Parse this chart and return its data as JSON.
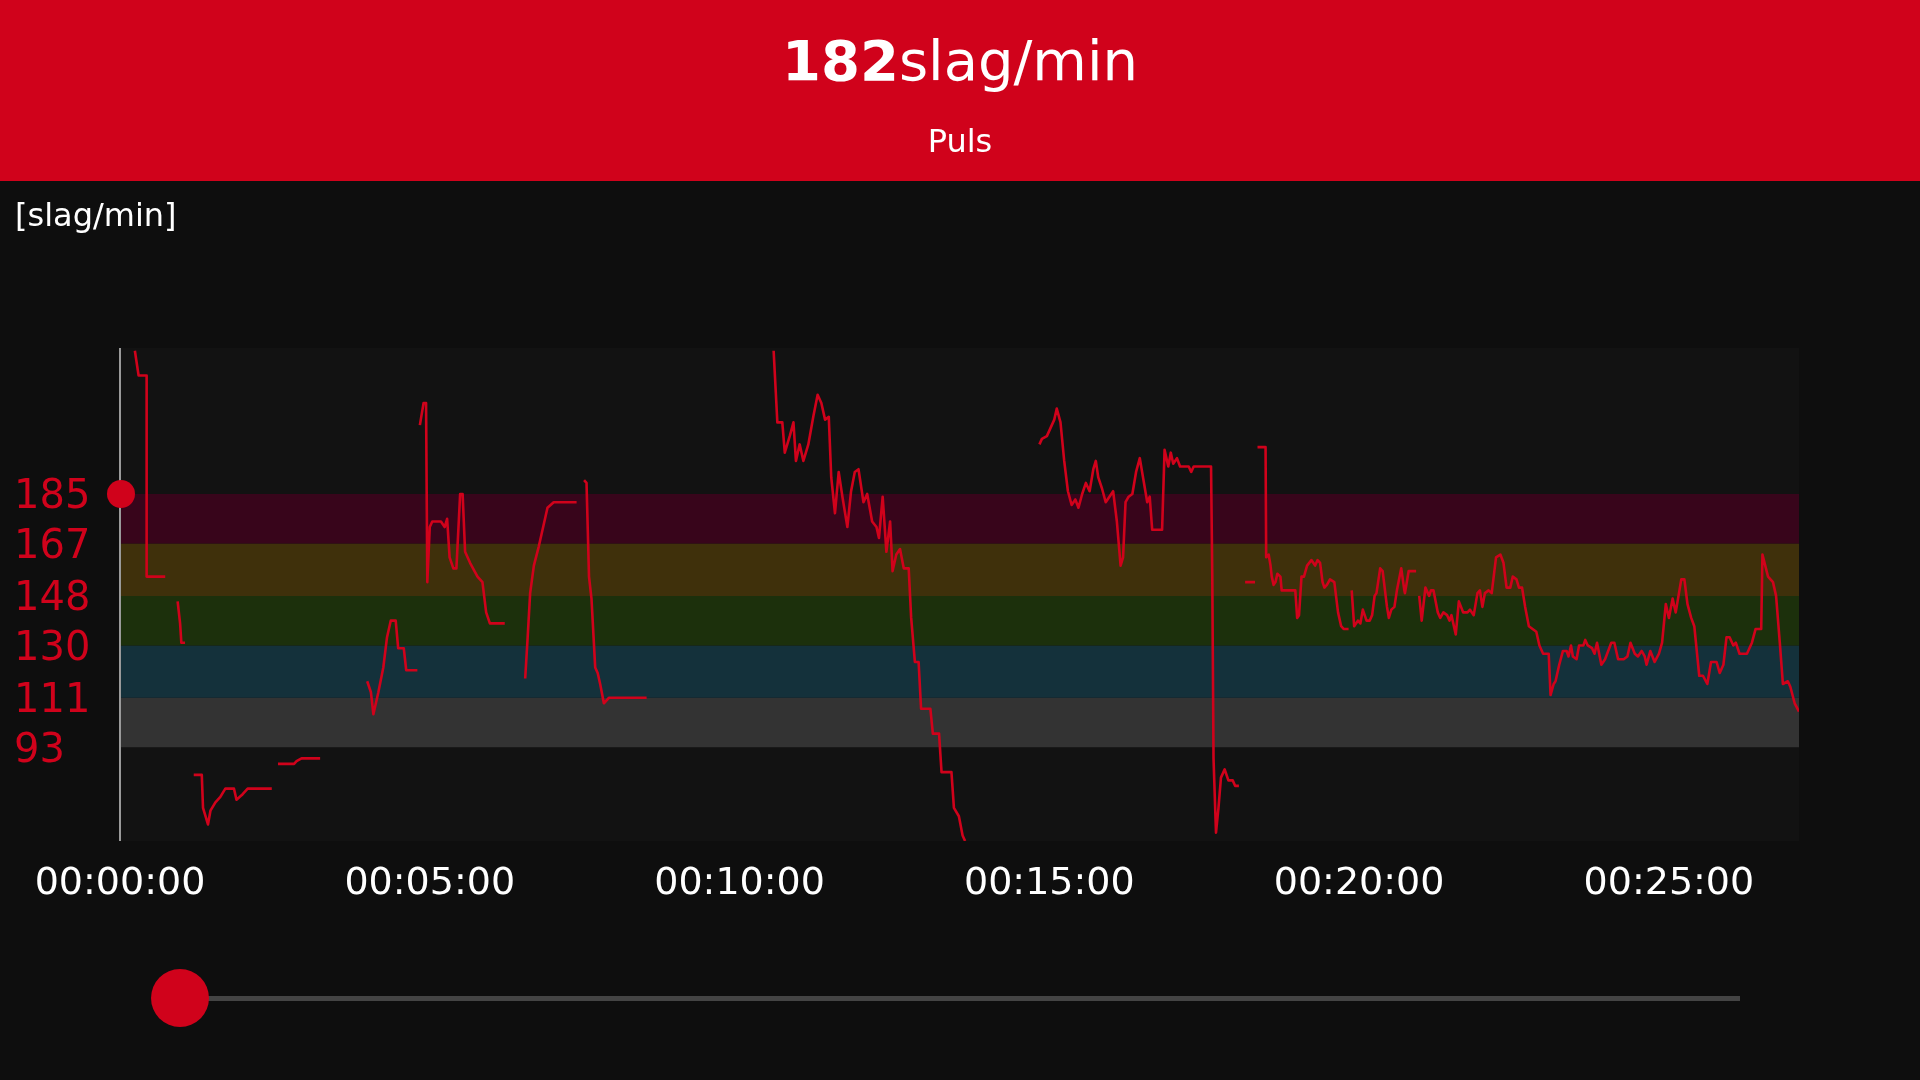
{
  "chart_data": {
    "type": "line",
    "title": "182slag/min",
    "subtitle": "Puls",
    "ylabel": "[slag/min]",
    "ylim": [
      59,
      238
    ],
    "yticks": [
      93,
      111,
      130,
      148,
      167,
      185
    ],
    "xlim": [
      0,
      27.1
    ],
    "xticks": [
      {
        "value": 0,
        "label": "00:00:00"
      },
      {
        "value": 5,
        "label": "00:05:00"
      },
      {
        "value": 10,
        "label": "00:10:00"
      },
      {
        "value": 15,
        "label": "00:15:00"
      },
      {
        "value": 20,
        "label": "00:20:00"
      },
      {
        "value": 25,
        "label": "00:25:00"
      }
    ],
    "bands": [
      {
        "axis": "y",
        "from": 93,
        "to": 111,
        "color": "#333333"
      },
      {
        "axis": "y",
        "from": 111,
        "to": 130,
        "color": "#14313b"
      },
      {
        "axis": "y",
        "from": 130,
        "to": 148,
        "color": "#1c300c"
      },
      {
        "axis": "y",
        "from": 148,
        "to": 167,
        "color": "#3f300b"
      },
      {
        "axis": "y",
        "from": 167,
        "to": 185,
        "color": "#38051b"
      }
    ],
    "x": [
      0.24,
      0.3,
      0.43,
      0.43,
      0.73,
      0.83,
      0.93,
      0.97,
      0.99,
      1.05,
      1.12,
      1.19,
      1.32,
      1.34,
      1.42,
      1.46,
      1.54,
      1.62,
      1.7,
      1.84,
      1.88,
      1.98,
      2.06,
      2.11,
      2.45,
      2.5,
      2.55,
      2.81,
      2.85,
      2.93,
      3.23,
      3.6,
      3.99,
      4.05,
      4.09,
      4.17,
      4.25,
      4.31,
      4.37,
      4.45,
      4.49,
      4.58,
      4.62,
      4.8,
      4.82,
      4.84,
      4.9,
      4.94,
      4.96,
      5.0,
      5.04,
      5.18,
      5.24,
      5.28,
      5.32,
      5.38,
      5.43,
      5.49,
      5.53,
      5.57,
      5.65,
      5.77,
      5.85,
      5.91,
      5.97,
      6.21,
      6.38,
      6.54,
      6.58,
      6.62,
      6.68,
      6.76,
      6.84,
      6.9,
      7.0,
      7.37,
      7.43,
      7.49,
      7.53,
      7.57,
      7.61,
      7.67,
      7.71,
      7.75,
      7.81,
      7.89,
      8.5,
      9.5,
      10.55,
      10.61,
      10.69,
      10.73,
      10.81,
      10.87,
      10.91,
      10.97,
      11.03,
      11.11,
      11.19,
      11.26,
      11.32,
      11.38,
      11.44,
      11.48,
      11.54,
      11.6,
      11.66,
      11.74,
      11.8,
      11.86,
      11.92,
      12.0,
      12.06,
      12.14,
      12.21,
      12.25,
      12.31,
      12.37,
      12.43,
      12.47,
      12.53,
      12.59,
      12.65,
      12.73,
      12.77,
      12.83,
      12.89,
      12.93,
      13.08,
      13.12,
      13.22,
      13.26,
      13.42,
      13.46,
      13.54,
      13.6,
      13.64,
      14.2,
      14.84,
      14.88,
      14.96,
      15.02,
      15.08,
      15.12,
      15.18,
      15.24,
      15.3,
      15.36,
      15.42,
      15.47,
      15.53,
      15.59,
      15.65,
      15.71,
      15.75,
      15.79,
      15.85,
      15.91,
      15.97,
      16.03,
      16.09,
      16.15,
      16.19,
      16.23,
      16.28,
      16.34,
      16.4,
      16.46,
      16.52,
      16.58,
      16.62,
      16.66,
      16.82,
      16.86,
      16.92,
      16.96,
      17.0,
      17.06,
      17.11,
      17.25,
      17.29,
      17.33,
      17.61,
      17.63,
      17.65,
      17.69,
      17.73,
      17.77,
      17.83,
      17.89,
      17.96,
      18.0,
      18.06,
      18.11,
      18.16,
      18.32,
      18.34,
      18.36,
      18.49,
      18.5,
      18.54,
      18.57,
      18.59,
      18.62,
      18.65,
      18.68,
      18.73,
      18.75,
      18.97,
      19.0,
      19.03,
      19.07,
      19.11,
      19.16,
      19.23,
      19.29,
      19.33,
      19.37,
      19.41,
      19.44,
      19.48,
      19.53,
      19.6,
      19.66,
      19.71,
      19.75,
      19.83,
      19.85,
      19.88,
      19.92,
      19.98,
      20.02,
      20.06,
      20.12,
      20.17,
      20.21,
      20.25,
      20.28,
      20.34,
      20.38,
      20.45,
      20.48,
      20.52,
      20.57,
      20.61,
      20.68,
      20.73,
      20.74,
      20.8,
      20.92,
      20.95,
      20.97,
      21.01,
      21.07,
      21.13,
      21.16,
      21.2,
      21.27,
      21.31,
      21.36,
      21.42,
      21.46,
      21.49,
      21.56,
      21.61,
      21.68,
      21.75,
      21.79,
      21.85,
      21.91,
      21.95,
      21.99,
      22.03,
      22.09,
      22.14,
      22.21,
      22.28,
      22.33,
      22.38,
      22.44,
      22.48,
      22.54,
      22.58,
      22.63,
      22.68,
      22.74,
      22.8,
      22.86,
      22.91,
      22.97,
      23.06,
      23.09,
      23.14,
      23.17,
      23.23,
      23.29,
      23.35,
      23.38,
      23.42,
      23.45,
      23.51,
      23.55,
      23.62,
      23.65,
      23.69,
      23.76,
      23.8,
      23.84,
      23.91,
      23.97,
      24.07,
      24.12,
      24.18,
      24.27,
      24.33,
      24.38,
      24.45,
      24.5,
      24.56,
      24.61,
      24.64,
      24.7,
      24.77,
      24.84,
      24.89,
      24.95,
      25.0,
      25.06,
      25.11,
      25.2,
      25.25,
      25.3,
      25.36,
      25.41,
      25.49,
      25.55,
      25.62,
      25.68,
      25.77,
      25.82,
      25.88,
      25.93,
      25.98,
      26.04,
      26.08,
      26.14,
      26.26,
      26.34,
      26.4,
      26.49,
      26.51,
      26.6,
      26.68,
      26.73,
      26.79,
      26.84,
      26.92,
      26.96,
      27.03,
      27.1
    ],
    "series": [
      {
        "color": "#d0021b",
        "values": [
          237,
          228,
          228,
          155,
          155,
          null,
          146,
          138,
          131,
          131,
          null,
          83,
          83,
          71,
          65,
          70,
          73,
          75,
          78,
          78,
          74,
          76,
          78,
          78,
          78,
          null,
          87,
          87,
          88,
          89,
          89,
          null,
          117,
          113,
          105,
          113,
          122,
          133,
          139,
          139,
          129,
          129,
          121,
          121,
          null,
          210,
          218,
          218,
          153,
          173,
          175,
          175,
          173,
          176,
          162,
          158,
          158,
          185,
          185,
          164,
          160,
          155,
          153,
          142,
          138,
          138,
          null,
          118,
          133,
          149,
          159,
          166,
          174,
          180,
          182,
          182,
          null,
          190,
          189,
          155,
          147,
          122,
          120,
          116,
          109,
          111,
          111,
          null,
          237,
          211,
          211,
          200,
          206,
          211,
          197,
          203,
          197,
          203,
          213,
          221,
          218,
          212,
          213,
          191,
          178,
          193,
          184,
          173,
          186,
          193,
          194,
          182,
          185,
          175,
          173,
          169,
          184,
          164,
          175,
          157,
          163,
          165,
          158,
          158,
          140,
          124,
          124,
          107,
          107,
          98,
          98,
          84,
          84,
          71,
          68,
          61,
          59,
          null,
          203,
          205,
          206,
          209,
          212,
          216,
          211,
          197,
          186,
          181,
          183,
          180,
          185,
          189,
          186,
          194,
          197,
          191,
          187,
          182,
          184,
          186,
          175,
          159,
          162,
          182,
          184,
          185,
          193,
          198,
          190,
          182,
          184,
          172,
          172,
          201,
          195,
          200,
          196,
          198,
          195,
          195,
          193,
          195,
          195,
          155,
          89,
          62,
          71,
          82,
          85,
          81,
          81,
          79,
          79,
          null,
          153,
          153,
          null,
          202,
          202,
          162,
          163,
          159,
          155,
          152,
          153,
          156,
          155,
          150,
          150,
          140,
          141,
          155,
          155,
          159,
          161,
          159,
          161,
          160,
          153,
          151,
          152,
          154,
          153,
          142,
          137,
          136,
          136,
          null,
          150,
          137,
          139,
          138,
          143,
          139,
          139,
          141,
          148,
          149,
          158,
          157,
          144,
          140,
          143,
          144,
          150,
          158,
          150,
          149,
          157,
          157,
          null,
          148,
          139,
          151,
          148,
          150,
          150,
          142,
          140,
          142,
          141,
          139,
          141,
          134,
          146,
          142,
          142,
          143,
          141,
          149,
          150,
          144,
          149,
          150,
          149,
          162,
          163,
          160,
          151,
          151,
          155,
          154,
          151,
          151,
          144,
          137,
          136,
          135,
          130,
          127,
          127,
          112,
          116,
          117,
          123,
          128,
          128,
          126,
          130,
          126,
          125,
          130,
          130,
          132,
          130,
          129,
          127,
          131,
          123,
          125,
          131,
          131,
          125,
          125,
          126,
          131,
          127,
          126,
          128,
          126,
          123,
          128,
          124,
          127,
          131,
          145,
          140,
          147,
          142,
          154,
          154,
          145,
          140,
          137,
          119,
          119,
          116,
          124,
          124,
          120,
          123,
          133,
          133,
          130,
          131,
          127,
          127,
          131,
          136,
          136,
          163,
          155,
          153,
          148,
          131,
          116,
          117,
          115,
          109,
          106
        ]
      }
    ]
  }
}
